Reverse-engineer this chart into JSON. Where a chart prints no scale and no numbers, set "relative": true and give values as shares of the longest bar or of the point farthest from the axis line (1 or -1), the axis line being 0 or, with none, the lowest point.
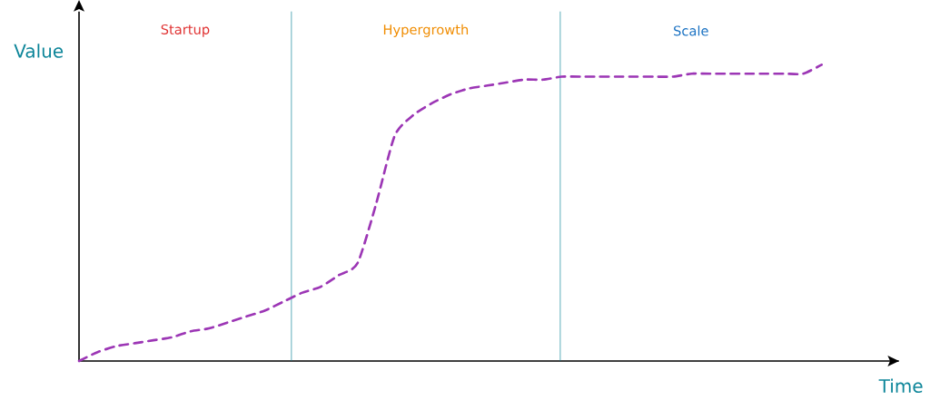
{
  "chart_data": {
    "type": "line",
    "relative": true,
    "xlabel": "Time",
    "ylabel": "Value",
    "categories": [
      null,
      null,
      null,
      null,
      null,
      null,
      null,
      null,
      null,
      null,
      null,
      null,
      null,
      null,
      null,
      null,
      null,
      null,
      null,
      null,
      null,
      null,
      null,
      null,
      null,
      null,
      null,
      null,
      null,
      null,
      null,
      null,
      null,
      null,
      null,
      null,
      null,
      null,
      null,
      null,
      null
    ],
    "series": [
      {
        "color": "#9c36b5",
        "line_style": "dashed",
        "values": [
          0,
          0.03,
          0.05,
          0.06,
          0.07,
          0.08,
          0.1,
          0.11,
          0.13,
          0.15,
          0.17,
          0.2,
          0.23,
          0.25,
          0.29,
          0.33,
          0.53,
          0.76,
          0.83,
          0.87,
          0.9,
          0.92,
          0.93,
          0.94,
          0.95,
          0.95,
          0.96,
          0.96,
          0.96,
          0.96,
          0.96,
          0.96,
          0.96,
          0.97,
          0.97,
          0.97,
          0.97,
          0.97,
          0.97,
          0.97,
          1.0
        ]
      }
    ],
    "annotations": [
      "Startup",
      "Hypergrowth",
      "Scale"
    ]
  }
}
